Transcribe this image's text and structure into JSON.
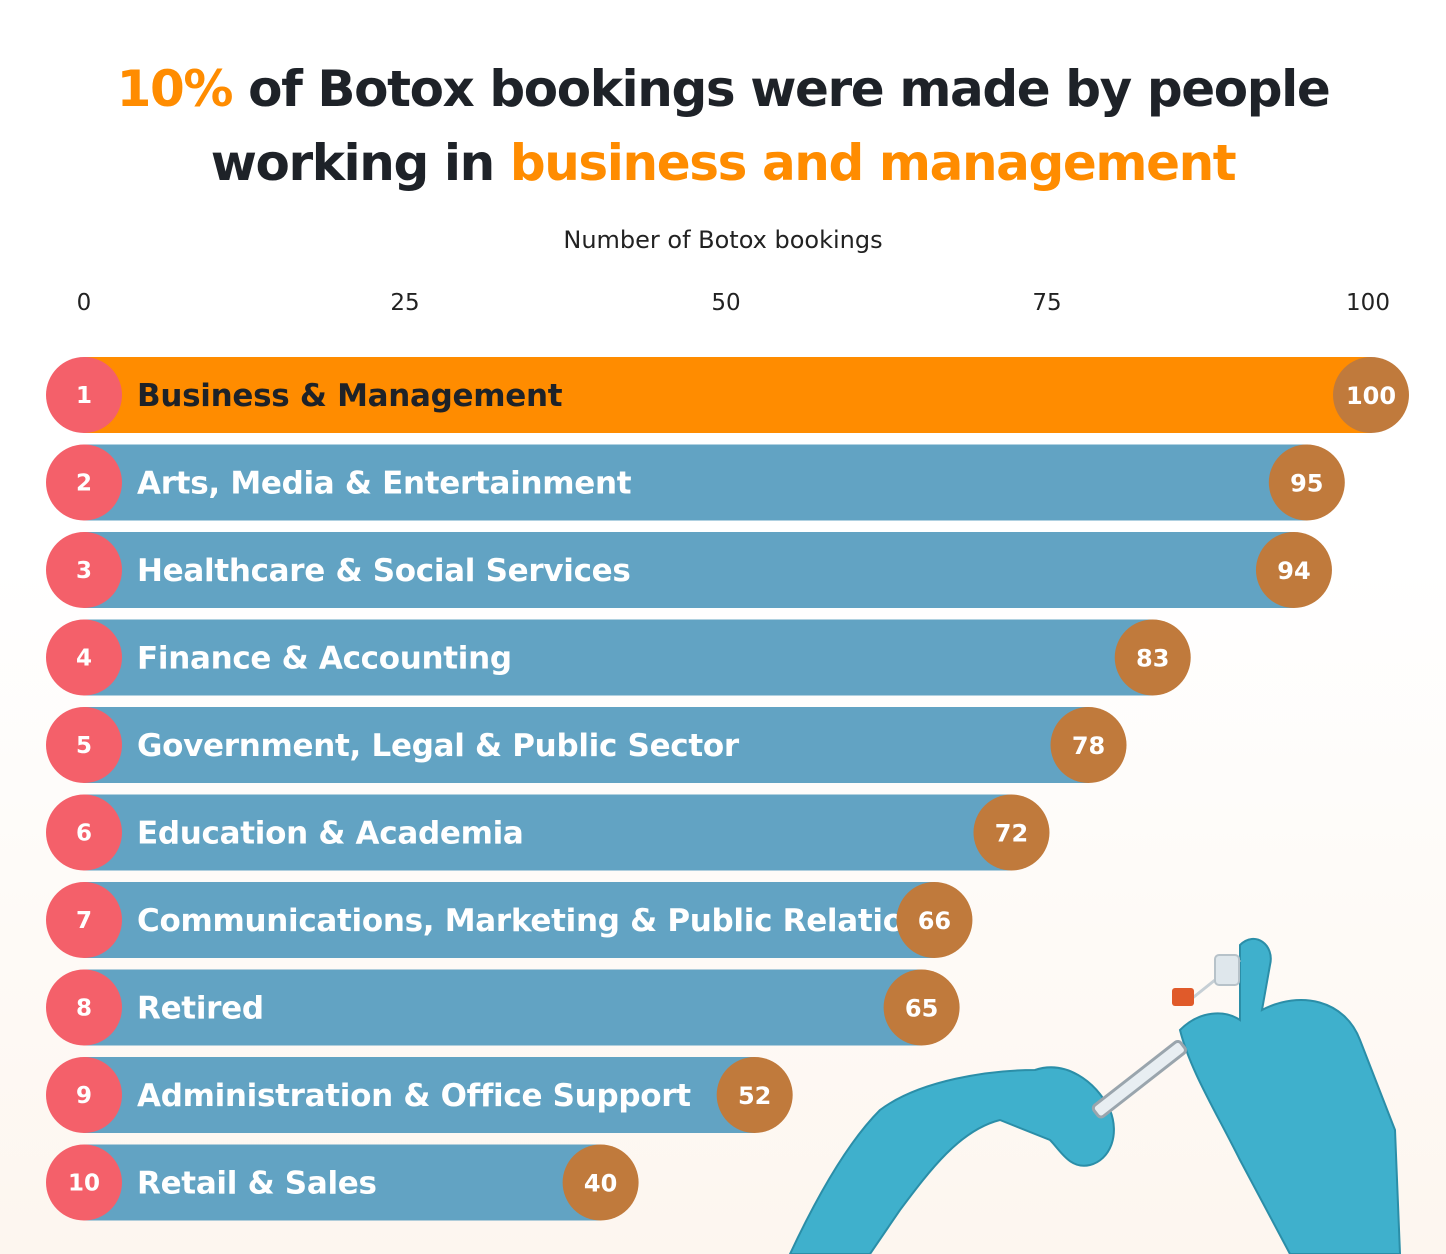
{
  "title": {
    "part1": "10%",
    "part2": " of Botox bookings were made by people",
    "part3": "working in ",
    "part4": "business and management"
  },
  "colors": {
    "highlight_bar": "#ff8c00",
    "bar": "#62a3c3",
    "rank_circle": "#f4606a",
    "value_circle": "#c07a3c",
    "title_accent": "#ff8c00"
  },
  "chart_data": {
    "type": "bar",
    "orientation": "horizontal",
    "xlabel": "Number of Botox bookings",
    "xlim": [
      0,
      100
    ],
    "ticks": [
      0,
      25,
      50,
      75,
      100
    ],
    "grid": false,
    "ranks": [
      "1",
      "2",
      "3",
      "4",
      "5",
      "6",
      "7",
      "8",
      "9",
      "10"
    ],
    "categories": [
      "Business & Management",
      "Arts, Media & Entertainment",
      "Healthcare & Social Services",
      "Finance & Accounting",
      "Government, Legal & Public Sector",
      "Education & Academia",
      "Communications, Marketing & Public Relations",
      "Retired",
      "Administration & Office Support",
      "Retail & Sales"
    ],
    "values": [
      100,
      95,
      94,
      83,
      78,
      72,
      66,
      65,
      52,
      40
    ],
    "highlighted_index": 0
  }
}
